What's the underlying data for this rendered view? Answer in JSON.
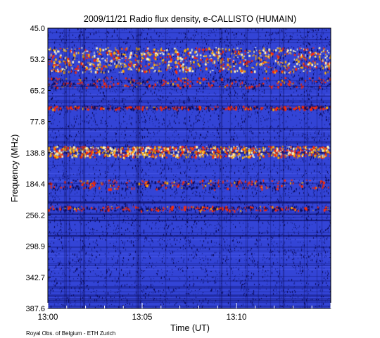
{
  "chart_data": {
    "type": "heatmap",
    "title": "2009/11/21  Radio flux density, e-CALLISTO (HUMAIN)",
    "xlabel": "Time (UT)",
    "ylabel": "Frequency (MHz)",
    "x_ticks": [
      "13:00",
      "13:05",
      "13:10"
    ],
    "y_ticks": [
      "45.0",
      "53.2",
      "65.2",
      "77.8",
      "138.8",
      "184.4",
      "256.2",
      "298.9",
      "342.7",
      "387.6"
    ],
    "xlim": [
      "13:00",
      "13:15"
    ],
    "ylim_mhz": [
      45.0,
      387.6
    ],
    "colormap": [
      "#0a0a5a",
      "#1e2a9e",
      "#3344d6",
      "#ff2a00",
      "#ffb000",
      "#fff7c0"
    ],
    "grid": false,
    "features": [
      {
        "name": "strong interference band",
        "freq_range_mhz": [
          50.0,
          58.0
        ],
        "intensity": "high"
      },
      {
        "name": "strong interference band",
        "freq_range_mhz": [
          60.0,
          64.0
        ],
        "intensity": "medium"
      },
      {
        "name": "interference line",
        "freq_mhz": 72.0,
        "intensity": "medium"
      },
      {
        "name": "strong interference band",
        "freq_range_mhz": [
          125.0,
          145.0
        ],
        "intensity": "high"
      },
      {
        "name": "interference band",
        "freq_range_mhz": [
          178.0,
          195.0
        ],
        "intensity": "medium"
      },
      {
        "name": "interference band",
        "freq_range_mhz": [
          235.0,
          245.0
        ],
        "intensity": "medium"
      }
    ]
  },
  "footer": "Royal Obs. of Belgium - ETH Zurich"
}
